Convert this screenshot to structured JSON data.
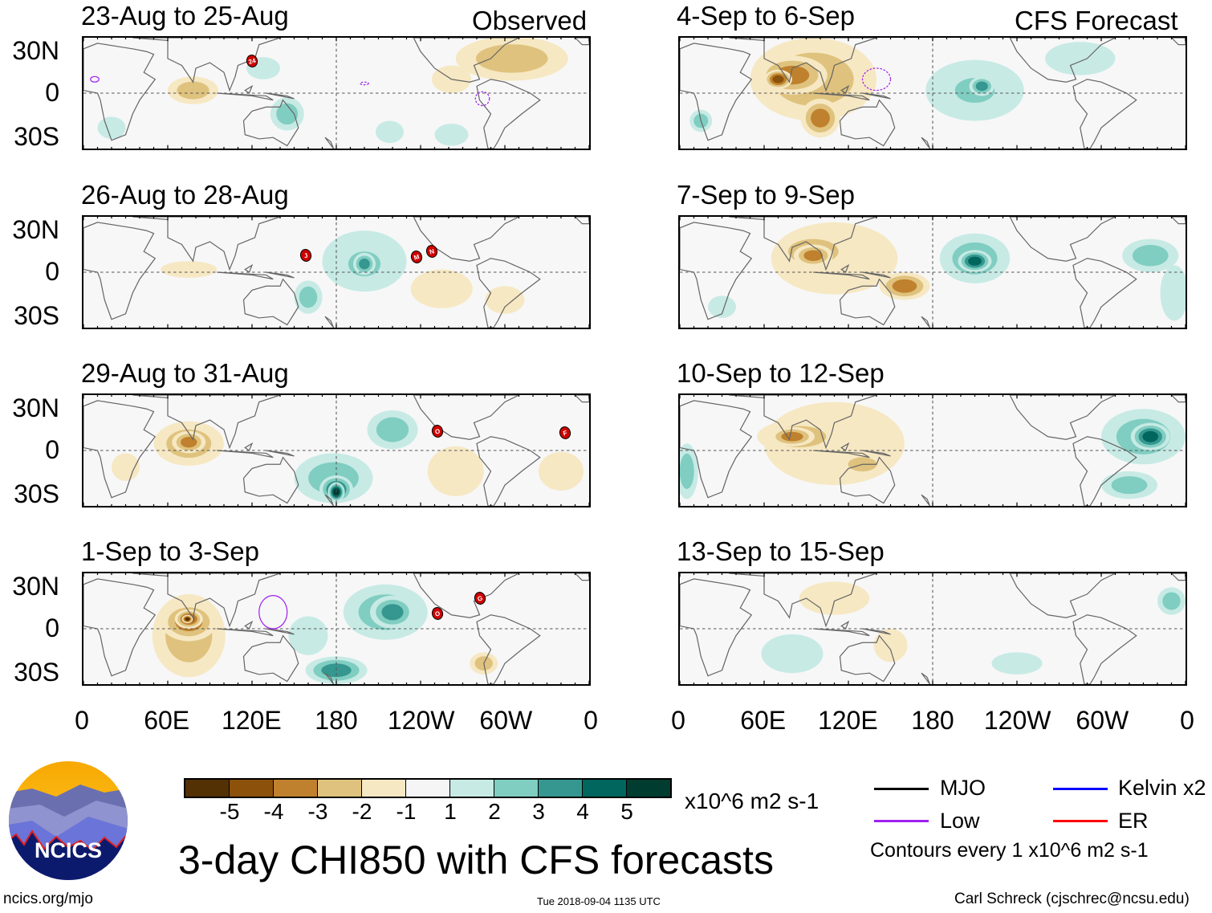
{
  "column_tags": {
    "left": "Observed",
    "right": "CFS Forecast"
  },
  "lat_labels": [
    "30N",
    "0",
    "30S"
  ],
  "lon_labels": [
    "0",
    "60E",
    "120E",
    "180",
    "120W",
    "60W",
    "0"
  ],
  "colorbar": {
    "colors": [
      "#543005",
      "#8c510a",
      "#bf812d",
      "#dfc27d",
      "#f6e8c3",
      "#f5f5f5",
      "#c7eae5",
      "#80cdc1",
      "#35978f",
      "#01665e",
      "#003c30"
    ],
    "labels": [
      "-5",
      "-4",
      "-3",
      "-2",
      "-1",
      "1",
      "2",
      "3",
      "4",
      "5"
    ],
    "units": "x10^6 m2 s-1"
  },
  "legend": {
    "mjo": {
      "label": "MJO",
      "color": "#000000"
    },
    "kelvin": {
      "label": "Kelvin x2",
      "color": "#0000ff"
    },
    "low": {
      "label": "Low",
      "color": "#a020f0"
    },
    "er": {
      "label": "ER",
      "color": "#ff0000"
    },
    "contour_note": "Contours every 1 x10^6 m2 s-1"
  },
  "title": "3-day CHI850 with CFS forecasts",
  "logo": {
    "text": "NCICS"
  },
  "footer": {
    "url": "ncics.org/mjo",
    "timestamp": "Tue 2018-09-04 1135 UTC",
    "author": "Carl Schreck (cjschrec@ncsu.edu)"
  },
  "chart_data": {
    "type": "heatmap",
    "variable": "CHI850 anomaly",
    "units": "x10^6 m2 s-1",
    "lon_range": [
      0,
      360
    ],
    "lat_range": [
      -40,
      40
    ],
    "panels": [
      {
        "title": "23-Aug to 25-Aug",
        "source": "Observed",
        "anomalies": [
          {
            "lon": 78,
            "lat": 2,
            "rlon": 18,
            "rlat": 10,
            "level": -2
          },
          {
            "lon": 305,
            "lat": 25,
            "rlon": 40,
            "rlat": 16,
            "level": -2
          },
          {
            "lon": 262,
            "lat": 10,
            "rlon": 14,
            "rlat": 10,
            "level": -1
          },
          {
            "lon": 128,
            "lat": 18,
            "rlon": 12,
            "rlat": 8,
            "level": 1
          },
          {
            "lon": 145,
            "lat": -15,
            "rlon": 12,
            "rlat": 12,
            "level": 2
          },
          {
            "lon": 218,
            "lat": -28,
            "rlon": 10,
            "rlat": 8,
            "level": 1
          },
          {
            "lon": 262,
            "lat": -30,
            "rlon": 12,
            "rlat": 8,
            "level": 1
          },
          {
            "lon": 20,
            "lat": -25,
            "rlon": 10,
            "rlat": 8,
            "level": 1
          }
        ],
        "cyclones": [
          {
            "label": "24",
            "lon": 120,
            "lat": 23
          }
        ],
        "lows": [
          {
            "lon": 8,
            "lat": 10,
            "rlon": 3,
            "rlat": 2,
            "dashed": false
          },
          {
            "lon": 284,
            "lat": -4,
            "rlon": 5,
            "rlat": 5,
            "dashed": true
          },
          {
            "lon": 200,
            "lat": 7,
            "rlon": 3,
            "rlat": 1,
            "dashed": true
          }
        ]
      },
      {
        "title": "26-Aug to 28-Aug",
        "source": "Observed",
        "anomalies": [
          {
            "lon": 75,
            "lat": 2,
            "rlon": 20,
            "rlat": 6,
            "level": -1
          },
          {
            "lon": 255,
            "lat": -12,
            "rlon": 22,
            "rlat": 14,
            "level": -1
          },
          {
            "lon": 300,
            "lat": -20,
            "rlon": 14,
            "rlat": 10,
            "level": -1
          },
          {
            "lon": 200,
            "lat": 8,
            "rlon": 30,
            "rlat": 22,
            "level": 1
          },
          {
            "lon": 200,
            "lat": 6,
            "rlon": 18,
            "rlat": 14,
            "level": 2
          },
          {
            "lon": 200,
            "lat": 6,
            "rlon": 8,
            "rlat": 8,
            "level": 3
          },
          {
            "lon": 160,
            "lat": -18,
            "rlon": 10,
            "rlat": 12,
            "level": 2
          }
        ],
        "cyclones": [
          {
            "label": "J",
            "lon": 158,
            "lat": 12
          },
          {
            "label": "M",
            "lon": 237,
            "lat": 11
          },
          {
            "label": "N",
            "lon": 248,
            "lat": 15
          }
        ],
        "lows": []
      },
      {
        "title": "29-Aug to 31-Aug",
        "source": "Observed",
        "anomalies": [
          {
            "lon": 75,
            "lat": 5,
            "rlon": 25,
            "rlat": 16,
            "level": -2
          },
          {
            "lon": 75,
            "lat": 6,
            "rlon": 12,
            "rlat": 8,
            "level": -3
          },
          {
            "lon": 30,
            "lat": -12,
            "rlon": 10,
            "rlat": 10,
            "level": -1
          },
          {
            "lon": 265,
            "lat": -15,
            "rlon": 20,
            "rlat": 18,
            "level": -1
          },
          {
            "lon": 340,
            "lat": -15,
            "rlon": 16,
            "rlat": 14,
            "level": -1
          },
          {
            "lon": 178,
            "lat": -20,
            "rlon": 28,
            "rlat": 18,
            "level": 2
          },
          {
            "lon": 180,
            "lat": -28,
            "rlon": 12,
            "rlat": 10,
            "level": 4
          },
          {
            "lon": 180,
            "lat": -30,
            "rlon": 6,
            "rlat": 7,
            "level": 5
          },
          {
            "lon": 220,
            "lat": 15,
            "rlon": 18,
            "rlat": 14,
            "level": 2
          }
        ],
        "cyclones": [
          {
            "label": "O",
            "lon": 252,
            "lat": 14
          },
          {
            "label": "F",
            "lon": 343,
            "lat": 13
          }
        ],
        "lows": []
      },
      {
        "title": "1-Sep to 3-Sep",
        "source": "Observed",
        "anomalies": [
          {
            "lon": 75,
            "lat": -5,
            "rlon": 26,
            "rlat": 30,
            "level": -2
          },
          {
            "lon": 75,
            "lat": 5,
            "rlon": 20,
            "rlat": 14,
            "level": -3
          },
          {
            "lon": 75,
            "lat": 7,
            "rlon": 10,
            "rlat": 7,
            "level": -4
          },
          {
            "lon": 74,
            "lat": 7,
            "rlon": 4,
            "rlat": 3,
            "level": -5
          },
          {
            "lon": 285,
            "lat": -25,
            "rlon": 10,
            "rlat": 8,
            "level": -2
          },
          {
            "lon": 215,
            "lat": 12,
            "rlon": 30,
            "rlat": 20,
            "level": 2
          },
          {
            "lon": 220,
            "lat": 12,
            "rlon": 16,
            "rlat": 12,
            "level": 3
          },
          {
            "lon": 180,
            "lat": -30,
            "rlon": 22,
            "rlat": 10,
            "level": 3
          },
          {
            "lon": 160,
            "lat": -5,
            "rlon": 14,
            "rlat": 14,
            "level": 1
          }
        ],
        "cyclones": [
          {
            "label": "O",
            "lon": 252,
            "lat": 11
          },
          {
            "label": "G",
            "lon": 282,
            "lat": 22
          }
        ],
        "lows": [
          {
            "lon": 135,
            "lat": 12,
            "rlon": 10,
            "rlat": 12,
            "dashed": false
          }
        ]
      },
      {
        "title": "4-Sep to 6-Sep",
        "source": "CFS Forecast",
        "anomalies": [
          {
            "lon": 95,
            "lat": 10,
            "rlon": 45,
            "rlat": 30,
            "level": -2
          },
          {
            "lon": 80,
            "lat": 13,
            "rlon": 25,
            "rlat": 14,
            "level": -3
          },
          {
            "lon": 70,
            "lat": 10,
            "rlon": 10,
            "rlat": 7,
            "level": -4
          },
          {
            "lon": 100,
            "lat": -18,
            "rlon": 14,
            "rlat": 14,
            "level": -3
          },
          {
            "lon": 210,
            "lat": 2,
            "rlon": 35,
            "rlat": 22,
            "level": 1
          },
          {
            "lon": 210,
            "lat": 2,
            "rlon": 22,
            "rlat": 14,
            "level": 2
          },
          {
            "lon": 215,
            "lat": 5,
            "rlon": 9,
            "rlat": 7,
            "level": 3
          },
          {
            "lon": 285,
            "lat": 25,
            "rlon": 25,
            "rlat": 12,
            "level": 1
          },
          {
            "lon": 15,
            "lat": -20,
            "rlon": 8,
            "rlat": 8,
            "level": 2
          }
        ],
        "cyclones": [],
        "lows": [
          {
            "lon": 140,
            "lat": 10,
            "rlon": 10,
            "rlat": 8,
            "dashed": true
          }
        ]
      },
      {
        "title": "7-Sep to 9-Sep",
        "source": "CFS Forecast",
        "anomalies": [
          {
            "lon": 110,
            "lat": 10,
            "rlon": 45,
            "rlat": 26,
            "level": -1
          },
          {
            "lon": 95,
            "lat": 15,
            "rlon": 28,
            "rlat": 14,
            "level": -2
          },
          {
            "lon": 95,
            "lat": 12,
            "rlon": 14,
            "rlat": 8,
            "level": -3
          },
          {
            "lon": 160,
            "lat": -10,
            "rlon": 18,
            "rlat": 10,
            "level": -3
          },
          {
            "lon": 210,
            "lat": 10,
            "rlon": 25,
            "rlat": 18,
            "level": 2
          },
          {
            "lon": 210,
            "lat": 8,
            "rlon": 12,
            "rlat": 8,
            "level": 4
          },
          {
            "lon": 335,
            "lat": 12,
            "rlon": 20,
            "rlat": 12,
            "level": 2
          },
          {
            "lon": 352,
            "lat": -15,
            "rlon": 10,
            "rlat": 20,
            "level": 1
          },
          {
            "lon": 30,
            "lat": -25,
            "rlon": 10,
            "rlat": 8,
            "level": 1
          }
        ],
        "cyclones": [],
        "lows": []
      },
      {
        "title": "10-Sep to 12-Sep",
        "source": "CFS Forecast",
        "anomalies": [
          {
            "lon": 110,
            "lat": 5,
            "rlon": 50,
            "rlat": 30,
            "level": -1
          },
          {
            "lon": 85,
            "lat": 10,
            "rlon": 30,
            "rlat": 12,
            "level": -2
          },
          {
            "lon": 80,
            "lat": 10,
            "rlon": 16,
            "rlat": 7,
            "level": -3
          },
          {
            "lon": 130,
            "lat": -10,
            "rlon": 16,
            "rlat": 8,
            "level": -2
          },
          {
            "lon": 330,
            "lat": 10,
            "rlon": 30,
            "rlat": 20,
            "level": 2
          },
          {
            "lon": 335,
            "lat": 10,
            "rlon": 14,
            "rlat": 10,
            "level": 4
          },
          {
            "lon": 5,
            "lat": -15,
            "rlon": 8,
            "rlat": 20,
            "level": 2
          },
          {
            "lon": 320,
            "lat": -25,
            "rlon": 20,
            "rlat": 10,
            "level": 2
          }
        ],
        "cyclones": [],
        "lows": []
      },
      {
        "title": "13-Sep to 15-Sep",
        "source": "CFS Forecast",
        "anomalies": [
          {
            "lon": 110,
            "lat": 22,
            "rlon": 25,
            "rlat": 12,
            "level": -1
          },
          {
            "lon": 150,
            "lat": -12,
            "rlon": 12,
            "rlat": 12,
            "level": -1
          },
          {
            "lon": 80,
            "lat": -18,
            "rlon": 22,
            "rlat": 14,
            "level": 1
          },
          {
            "lon": 350,
            "lat": 20,
            "rlon": 10,
            "rlat": 10,
            "level": 2
          },
          {
            "lon": 240,
            "lat": -25,
            "rlon": 18,
            "rlat": 8,
            "level": 1
          }
        ],
        "cyclones": [],
        "lows": []
      }
    ]
  }
}
